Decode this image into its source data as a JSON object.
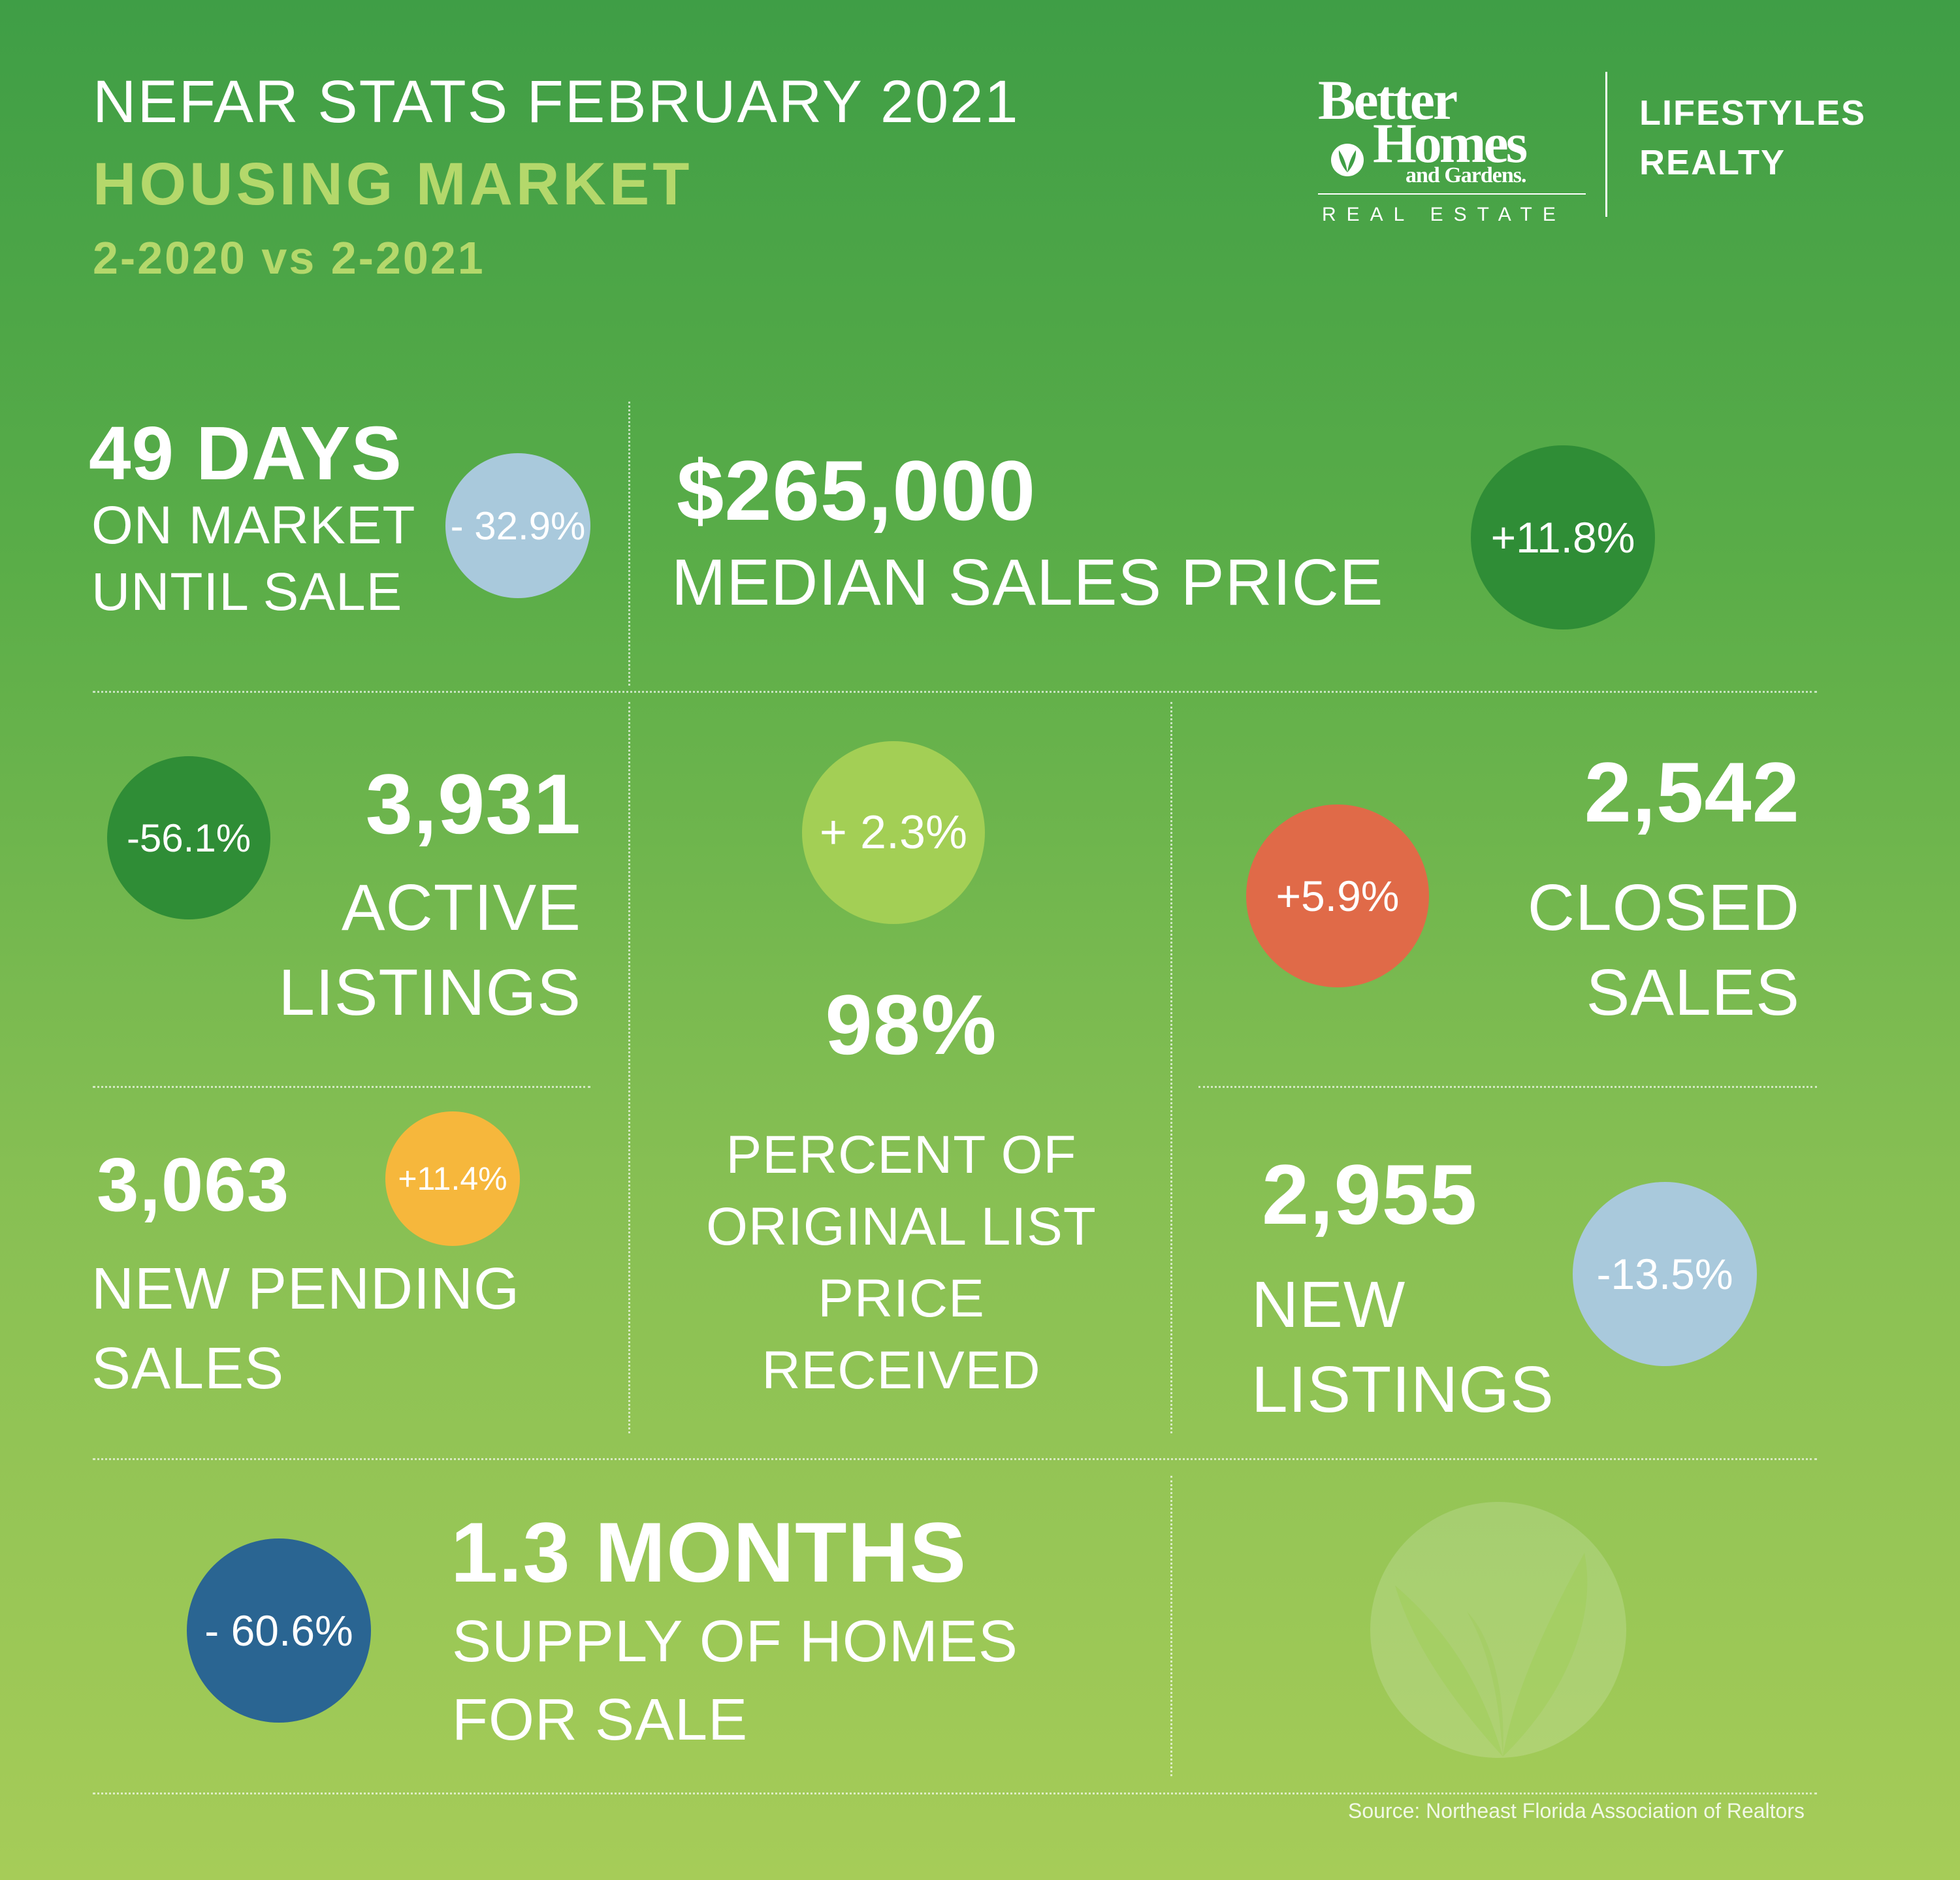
{
  "header": {
    "title": "NEFAR STATS  FEBRUARY 2021",
    "subtitle": "HOUSING MARKET",
    "period": "2-2020 vs 2-2021"
  },
  "logo": {
    "line1": "Better",
    "line2": "Homes",
    "line3": "and Gardens.",
    "line4": "REAL ESTATE",
    "partner_line1": "LIFESTYLES",
    "partner_line2": "REALTY"
  },
  "stats": {
    "days_on_market": {
      "value": "49 DAYS",
      "label1": "ON  MARKET",
      "label2": "UNTIL SALE",
      "change": "- 32.9%"
    },
    "median_price": {
      "value": "$265,000",
      "label": "MEDIAN SALES PRICE",
      "change": "+11.8%"
    },
    "active_listings": {
      "value": "3,931",
      "label1": "ACTIVE",
      "label2": "LISTINGS",
      "change": "-56.1%"
    },
    "percent_list": {
      "value": "98%",
      "label1": "PERCENT OF",
      "label2": "ORIGINAL LIST",
      "label3": "PRICE",
      "label4": "RECEIVED",
      "change": "+ 2.3%"
    },
    "closed_sales": {
      "value": "2,542",
      "label1": "CLOSED",
      "label2": "SALES",
      "change": "+5.9%"
    },
    "pending_sales": {
      "value": "3,063",
      "label1": "NEW PENDING",
      "label2": "SALES",
      "change": "+11.4%"
    },
    "new_listings": {
      "value": "2,955",
      "label1": "NEW",
      "label2": "LISTINGS",
      "change": "-13.5%"
    },
    "supply": {
      "value": "1.3 MONTHS",
      "label1": "SUPPLY OF HOMES",
      "label2": "FOR SALE",
      "change": "- 60.6%"
    }
  },
  "colors": {
    "light_blue": "#a9c9dc",
    "dark_green": "#2f8d36",
    "light_green": "#a3cf55",
    "orange_red": "#e06a48",
    "yellow": "#f6b73c",
    "dark_blue": "#2a6592"
  },
  "source": "Source: Northeast Florida Association of Realtors"
}
